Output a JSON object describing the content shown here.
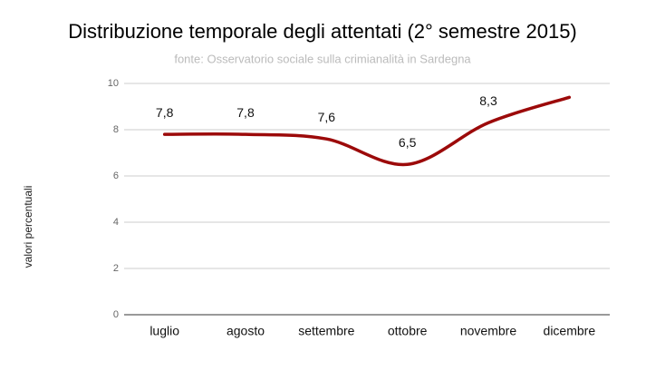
{
  "chart_data": {
    "type": "line",
    "title": "Distribuzione temporale degli attentati (2° semestre 2015)",
    "subtitle": "fonte: Osservatorio sociale sulla crimianalità in Sardegna",
    "y_label": "valori percentuali",
    "categories": [
      "luglio",
      "agosto",
      "settembre",
      "ottobre",
      "novembre",
      "dicembre"
    ],
    "values": [
      7.8,
      7.8,
      7.6,
      6.5,
      8.3,
      9.4
    ],
    "value_labels": [
      "7,8",
      "7,8",
      "7,6",
      "6,5",
      "8,3",
      null
    ],
    "color": "#9c0a0a",
    "ylim": [
      0,
      10
    ],
    "yticks": [
      0,
      2,
      4,
      6,
      8,
      10
    ],
    "grid": true
  }
}
